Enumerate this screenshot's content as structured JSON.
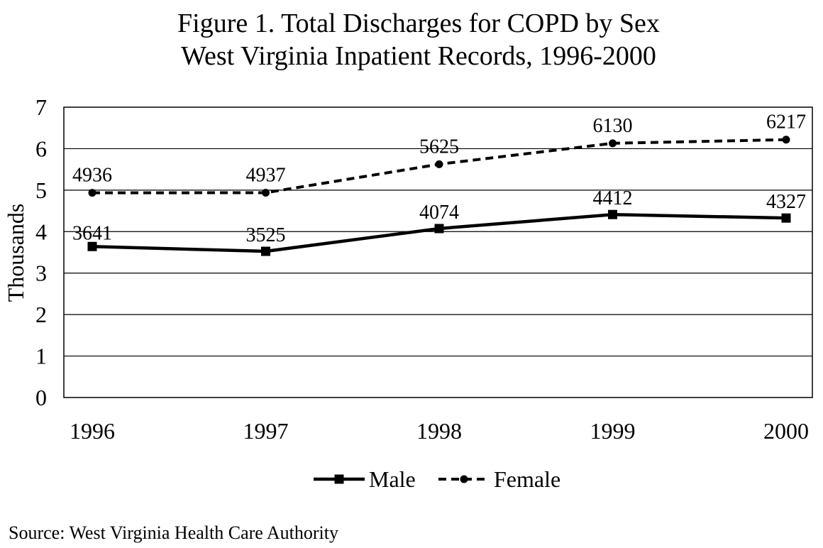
{
  "chart_data": {
    "type": "line",
    "title": "Figure 1.  Total Discharges for COPD by Sex",
    "subtitle": "West Virginia Inpatient Records, 1996-2000",
    "ylabel": "Thousands",
    "xlabel": "",
    "categories": [
      "1996",
      "1997",
      "1998",
      "1999",
      "2000"
    ],
    "ylim": [
      0,
      7
    ],
    "yticks": [
      0,
      1,
      2,
      3,
      4,
      5,
      6,
      7
    ],
    "grid": true,
    "legend_position": "bottom",
    "series": [
      {
        "name": "Male",
        "style": "solid",
        "marker": "square",
        "values": [
          3.641,
          3.525,
          4.074,
          4.412,
          4.327
        ],
        "labels": [
          "3641",
          "3525",
          "4074",
          "4412",
          "4327"
        ]
      },
      {
        "name": "Female",
        "style": "dashed",
        "marker": "circle",
        "values": [
          4.936,
          4.937,
          5.625,
          6.13,
          6.217
        ],
        "labels": [
          "4936",
          "4937",
          "5625",
          "6130",
          "6217"
        ]
      }
    ]
  },
  "source": "Source:  West Virginia Health Care Authority"
}
